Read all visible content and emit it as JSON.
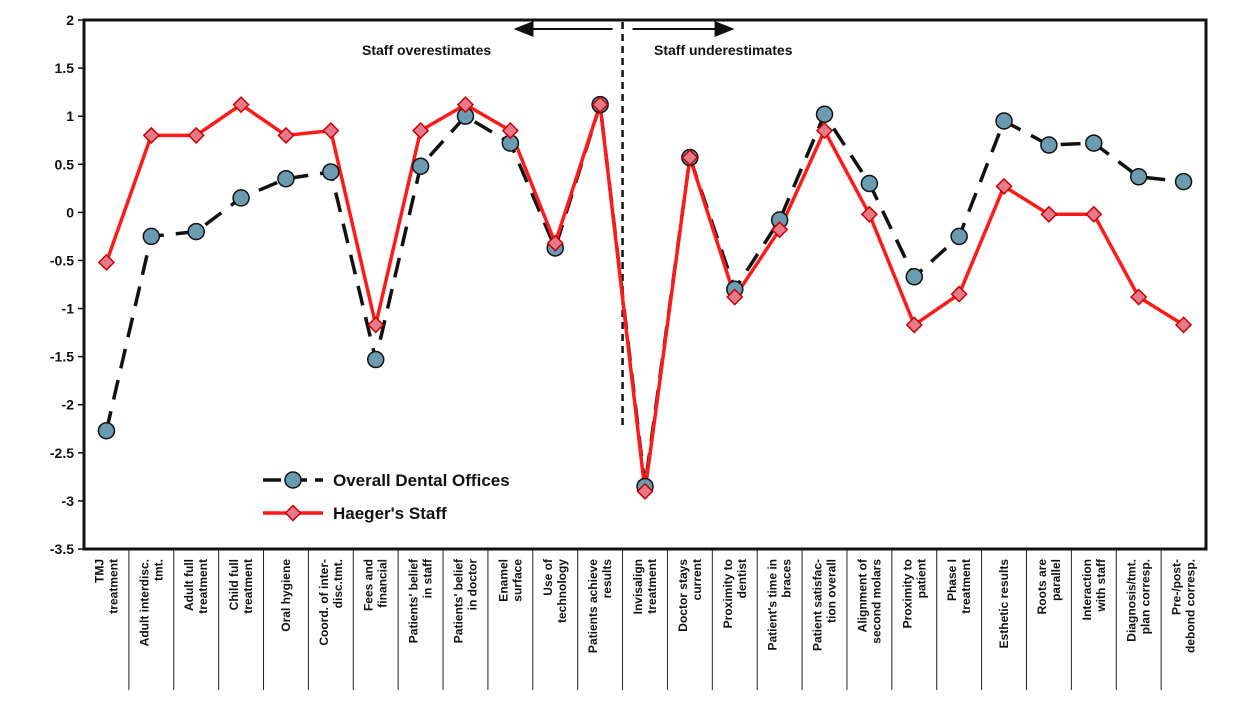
{
  "chart_data": {
    "type": "line",
    "ylim": [
      -3.5,
      2
    ],
    "yticks": [
      "2",
      "1.5",
      "1",
      "0.5",
      "0",
      "-0.5",
      "-1",
      "-1.5",
      "-2",
      "-2.5",
      "-3",
      "-3.5"
    ],
    "ytick_values": [
      2,
      1.5,
      1,
      0.5,
      0,
      -0.5,
      -1,
      -1.5,
      -2,
      -2.5,
      -3,
      -3.5
    ],
    "categories": [
      [
        "TMJ",
        "treatment"
      ],
      [
        "Adult interdisc.",
        "tmt."
      ],
      [
        "Adult full",
        "treatment"
      ],
      [
        "Child full",
        "treatment"
      ],
      [
        "Oral hygiene"
      ],
      [
        "Coord. of inter-",
        "disc.tmt."
      ],
      [
        "Fees and",
        "financial"
      ],
      [
        "Patients' belief",
        "in staff"
      ],
      [
        "Patients' belief",
        "in doctor"
      ],
      [
        "Enamel",
        "surface"
      ],
      [
        "Use of",
        "technology"
      ],
      [
        "Patients achieve",
        "results"
      ],
      [
        "Invisalign",
        "treatment"
      ],
      [
        "Doctor stays",
        "current"
      ],
      [
        "Proximity to",
        "dentist"
      ],
      [
        "Patient's time in",
        "braces"
      ],
      [
        "Patient satisfac-",
        "tion overall"
      ],
      [
        "Alignment of",
        "second molars"
      ],
      [
        "Proximity to",
        "patient"
      ],
      [
        "Phase I",
        "treatment"
      ],
      [
        "Esthetic results"
      ],
      [
        "Roots are",
        "parallel"
      ],
      [
        "Interaction",
        "with staff"
      ],
      [
        "Diagnosis/tmt.",
        "plan corresp."
      ],
      [
        "Pre-/post-",
        "debond corresp."
      ]
    ],
    "series": [
      {
        "name": "Overall Dental Offices",
        "color": "#6b9bb0",
        "line_color": "#111111",
        "line_style": "dashed",
        "marker": "circle",
        "values": [
          -2.27,
          -0.25,
          -0.2,
          0.15,
          0.35,
          0.42,
          -1.53,
          0.48,
          1.0,
          0.72,
          -0.37,
          1.12,
          -2.85,
          0.57,
          -0.8,
          -0.08,
          1.02,
          0.3,
          -0.67,
          -0.25,
          0.95,
          0.7,
          0.72,
          0.37,
          0.32
        ]
      },
      {
        "name": "Haeger's Staff",
        "color": "#e57a8a",
        "line_color": "#ff1a1a",
        "line_style": "solid",
        "marker": "diamond",
        "values": [
          -0.52,
          0.8,
          0.8,
          1.12,
          0.8,
          0.85,
          -1.17,
          0.85,
          1.12,
          0.85,
          -0.32,
          1.12,
          -2.9,
          0.57,
          -0.88,
          -0.18,
          0.85,
          -0.02,
          -1.17,
          -0.85,
          0.27,
          -0.02,
          -0.02,
          -0.88,
          -1.17
        ]
      }
    ],
    "annotations": {
      "left": "Staff overestimates",
      "right": "Staff underestimates"
    },
    "divider_after_index": 11.5,
    "legend_position": "bottom-left"
  }
}
